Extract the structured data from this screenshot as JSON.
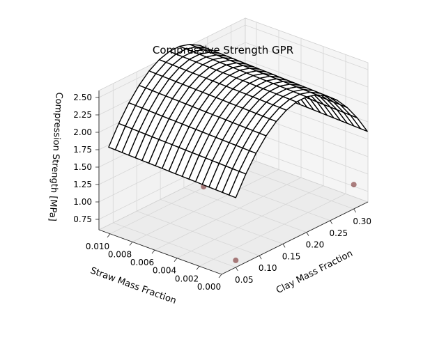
{
  "chart_data": {
    "type": "surface",
    "title": "Compressive Strength GPR",
    "x_axis": {
      "label": "Clay Mass Fraction",
      "ticks": [
        "0.05",
        "0.10",
        "0.15",
        "0.20",
        "0.25",
        "0.30"
      ],
      "range": [
        0.02,
        0.33
      ]
    },
    "y_axis": {
      "label": "Straw Mass Fraction",
      "ticks": [
        "0.000",
        "0.002",
        "0.004",
        "0.006",
        "0.008",
        "0.010"
      ],
      "range": [
        0.0,
        0.011
      ]
    },
    "z_axis": {
      "label": "Compression Strength [MPa]",
      "ticks": [
        "0.75",
        "1.00",
        "1.25",
        "1.50",
        "1.75",
        "2.00",
        "2.25",
        "2.50"
      ],
      "range": [
        0.6,
        2.6
      ]
    },
    "surface": {
      "clay_grid": [
        0.05,
        0.0714,
        0.0929,
        0.1143,
        0.1357,
        0.1571,
        0.1786,
        0.2,
        0.2214,
        0.2429,
        0.2643,
        0.2857,
        0.3071,
        0.3286
      ],
      "straw_grid": [
        0.0,
        0.0006,
        0.0012,
        0.0018,
        0.0024,
        0.003,
        0.0036,
        0.0042,
        0.0048,
        0.0054,
        0.006,
        0.0066,
        0.0072,
        0.0078,
        0.0084,
        0.009,
        0.0096,
        0.0102,
        0.0108,
        0.0114
      ],
      "peak_clay": 0.19,
      "peak_strength": 2.55,
      "wireframe_color": "#000000"
    },
    "points": [
      {
        "clay": 0.05,
        "straw": 0.0,
        "strength": 0.7
      },
      {
        "clay": 0.1,
        "straw": 0.005,
        "strength": 1.3
      },
      {
        "clay": 0.1,
        "straw": 0.0106,
        "strength": 1.4
      },
      {
        "clay": 0.3,
        "straw": 0.0,
        "strength": 0.95
      },
      {
        "clay": 0.25,
        "straw": 0.002,
        "strength": 2.3
      }
    ],
    "point_color": "#6b1a1a",
    "grid": true
  }
}
